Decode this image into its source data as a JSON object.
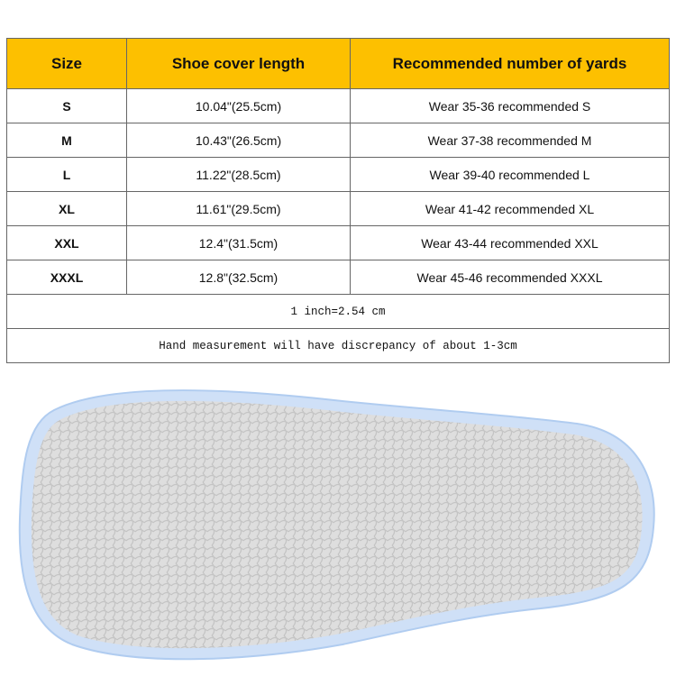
{
  "table": {
    "headers": [
      "Size",
      "Shoe cover length",
      "Recommended number of yards"
    ],
    "rows": [
      [
        "S",
        "10.04\"(25.5cm)",
        "Wear 35-36 recommended S"
      ],
      [
        "M",
        "10.43\"(26.5cm)",
        "Wear 37-38 recommended M"
      ],
      [
        "L",
        "11.22\"(28.5cm)",
        "Wear 39-40 recommended L"
      ],
      [
        "XL",
        "11.61\"(29.5cm)",
        "Wear 41-42 recommended XL"
      ],
      [
        "XXL",
        "12.4\"(31.5cm)",
        "Wear 43-44 recommended XXL"
      ],
      [
        "XXXL",
        "12.8\"(32.5cm)",
        "Wear 45-46 recommended XXXL"
      ]
    ],
    "notes": [
      "1 inch=2.54 cm",
      "Hand measurement will have discrepancy of about 1-3cm"
    ]
  },
  "colors": {
    "header": "#fdc000",
    "sole": "#dcdcdc",
    "sole_edge": "#b9d3f3"
  }
}
